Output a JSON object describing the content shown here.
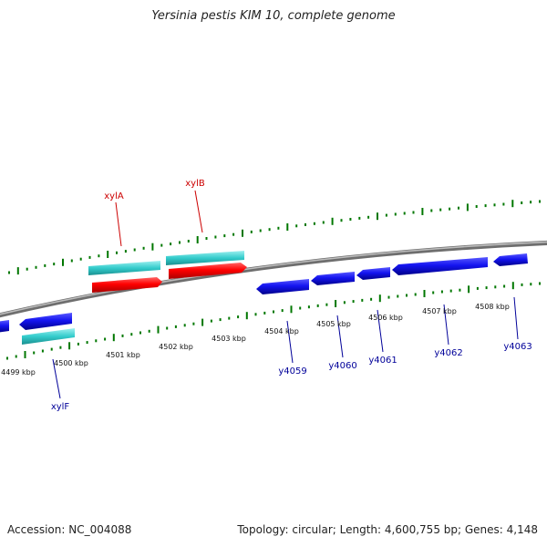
{
  "title": "Yersinia pestis KIM 10, complete genome",
  "footer": {
    "accession": "Accession: NC_004088",
    "topology": "Topology: circular; Length: 4,600,755 bp; Genes: 4,148"
  },
  "ruler": {
    "tick_labels": [
      "4499 kbp",
      "4500 kbp",
      "4501 kbp",
      "4502 kbp",
      "4503 kbp",
      "4504 kbp",
      "4505 kbp",
      "4506 kbp",
      "4507 kbp",
      "4508 kbp"
    ]
  },
  "genes": {
    "forward": [
      {
        "label": "xylA",
        "color": "#1a1aff"
      },
      {
        "label": "xylB",
        "color": "#1a1aff"
      }
    ],
    "reverse": [
      {
        "label": "xylF"
      },
      {
        "label": "y4059"
      },
      {
        "label": "y4060"
      },
      {
        "label": "y4061"
      },
      {
        "label": "y4062"
      },
      {
        "label": "y4063"
      }
    ]
  },
  "colors": {
    "forward_gene": "#ff0000",
    "forward_label": "#cc0000",
    "reverse_gene": "#0000ee",
    "reverse_label": "#000099",
    "cds_band": "#33cccc",
    "ruler_tick": "#007700",
    "backbone": "#888888"
  }
}
